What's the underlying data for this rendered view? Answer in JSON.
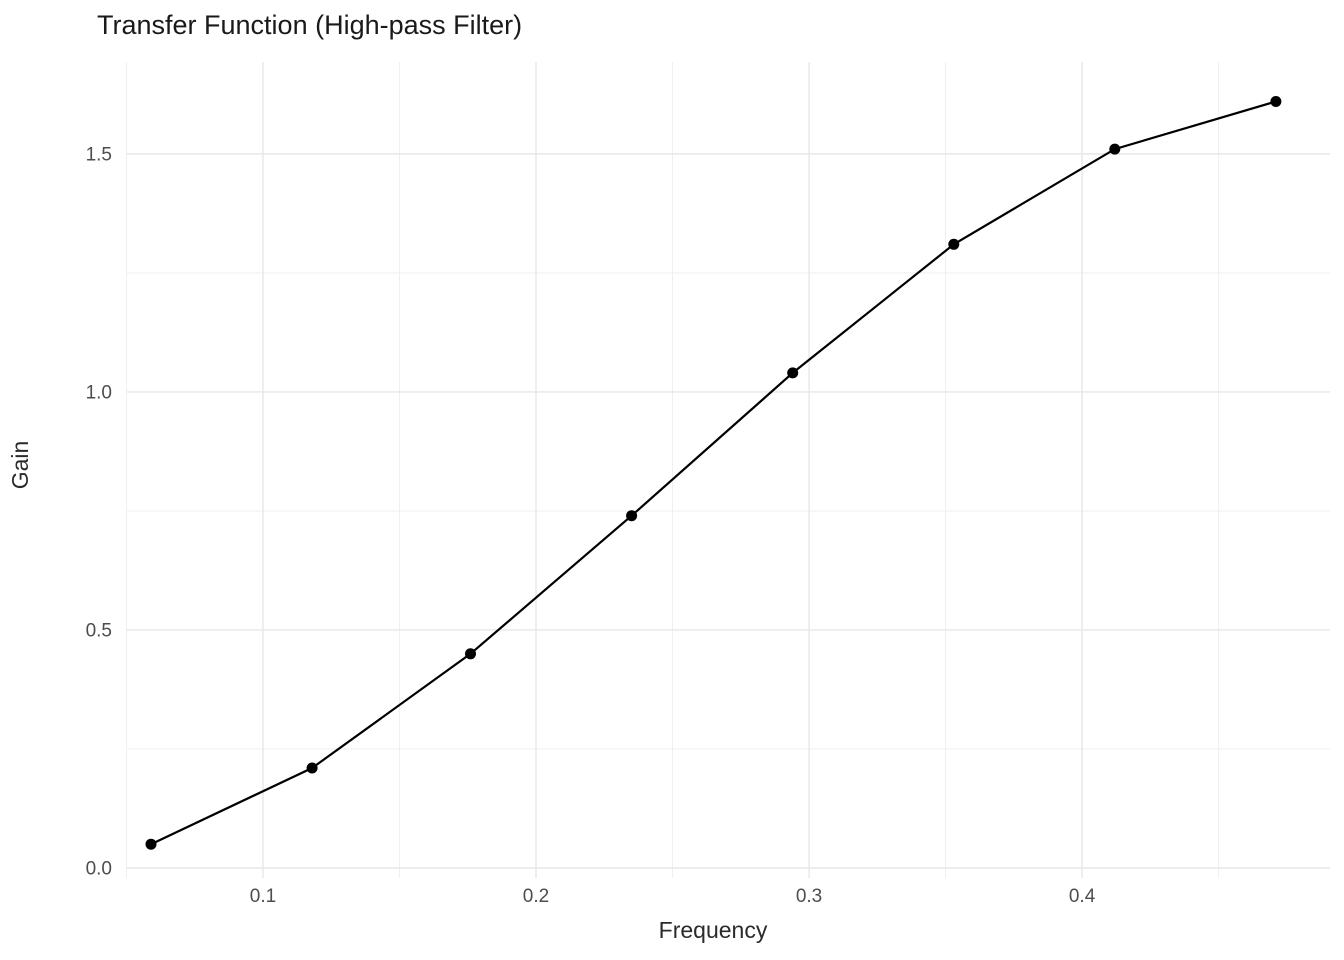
{
  "chart_data": {
    "type": "line",
    "title": "Transfer Function (High-pass Filter)",
    "xlabel": "Frequency",
    "ylabel": "Gain",
    "series": [
      {
        "name": "Gain",
        "x": [
          0.059,
          0.118,
          0.176,
          0.235,
          0.294,
          0.353,
          0.412,
          0.471
        ],
        "y": [
          0.05,
          0.21,
          0.45,
          0.74,
          1.04,
          1.31,
          1.51,
          1.61
        ]
      }
    ],
    "x_ticks": {
      "values": [
        0.1,
        0.2,
        0.3,
        0.4
      ],
      "labels": [
        "0.1",
        "0.2",
        "0.3",
        "0.4"
      ]
    },
    "y_ticks": {
      "values": [
        0.0,
        0.5,
        1.0,
        1.5
      ],
      "labels": [
        "0.0",
        "0.5",
        "1.0",
        "1.5"
      ]
    },
    "x_minor_ticks": [
      0.05,
      0.15,
      0.25,
      0.35,
      0.45
    ],
    "y_minor_ticks": [
      0.25,
      0.75,
      1.25
    ],
    "xlim": [
      0.0502,
      0.4908
    ],
    "ylim": [
      -0.021,
      1.693
    ],
    "grid": true,
    "legend": "none",
    "marker": "point",
    "colors": {
      "line": "#000000",
      "point": "#000000",
      "grid_major": "#e7e7e7",
      "grid_minor": "#efefef",
      "axis_text": "#4d4d4d",
      "title_text": "#1a1a1a",
      "background": "#ffffff"
    }
  }
}
